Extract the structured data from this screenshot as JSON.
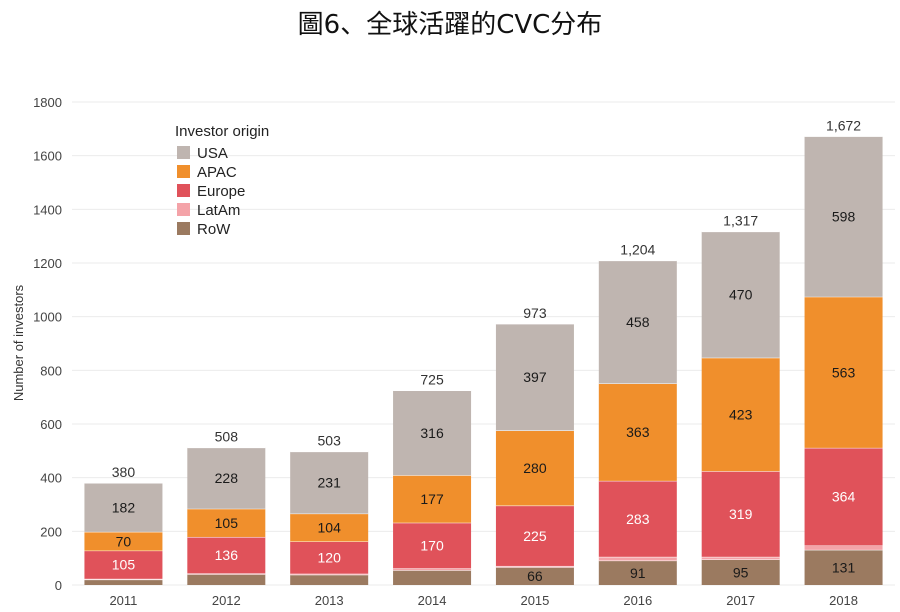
{
  "chart_data": {
    "type": "bar",
    "stacked": true,
    "title": "圖6、全球活躍的CVC分布",
    "xlabel": "",
    "ylabel": "Number of investors",
    "ylim": [
      0,
      1800
    ],
    "yticks": [
      0,
      200,
      400,
      600,
      800,
      1000,
      1200,
      1400,
      1600,
      1800
    ],
    "grid": true,
    "legend_title": "Investor origin",
    "legend_position": "top-left",
    "categories": [
      "2011",
      "2012",
      "2013",
      "2014",
      "2015",
      "2016",
      "2017",
      "2018"
    ],
    "series": [
      {
        "name": "RoW",
        "color": "#9b7a60",
        "values": [
          20,
          40,
          38,
          55,
          66,
          91,
          95,
          131
        ],
        "labels": [
          "",
          "",
          "",
          "",
          "66",
          "91",
          "95",
          "131"
        ],
        "label_dark": true
      },
      {
        "name": "LatAm",
        "color": "#f4a3a8",
        "values": [
          3,
          3,
          4,
          7,
          5,
          14,
          10,
          16
        ],
        "labels": [
          "",
          "",
          "",
          "",
          "",
          "",
          "",
          ""
        ],
        "label_dark": true
      },
      {
        "name": "Europe",
        "color": "#e0525a",
        "values": [
          105,
          136,
          120,
          170,
          225,
          283,
          319,
          364
        ],
        "labels": [
          "105",
          "136",
          "120",
          "170",
          "225",
          "283",
          "319",
          "364"
        ],
        "label_dark": false
      },
      {
        "name": "APAC",
        "color": "#f08f2c",
        "values": [
          70,
          105,
          104,
          177,
          280,
          363,
          423,
          563
        ],
        "labels": [
          "70",
          "105",
          "104",
          "177",
          "280",
          "363",
          "423",
          "563"
        ],
        "label_dark": true
      },
      {
        "name": "USA",
        "color": "#bfb5b0",
        "values": [
          182,
          228,
          231,
          316,
          397,
          458,
          470,
          598
        ],
        "labels": [
          "182",
          "228",
          "231",
          "316",
          "397",
          "458",
          "470",
          "598"
        ],
        "label_dark": true
      }
    ],
    "totals": [
      "380",
      "508",
      "503",
      "725",
      "973",
      "1,204",
      "1,317",
      "1,672"
    ],
    "legend_order": [
      "USA",
      "APAC",
      "Europe",
      "LatAm",
      "RoW"
    ]
  }
}
